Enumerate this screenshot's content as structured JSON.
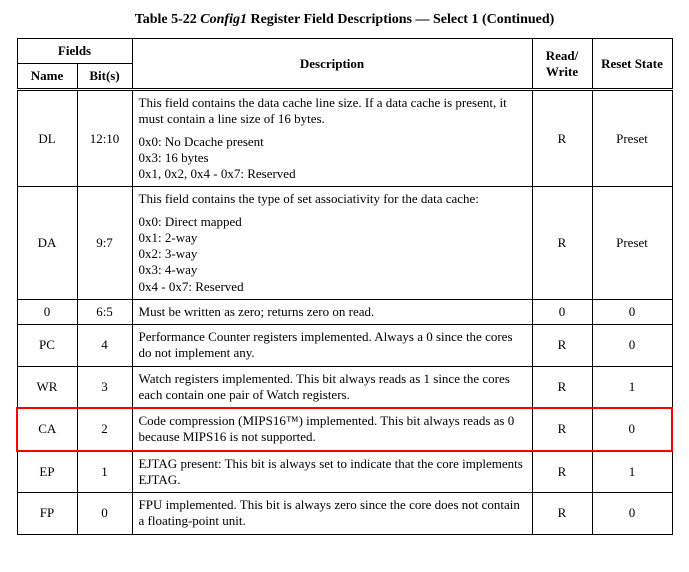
{
  "caption": {
    "prefix": "Table 5-22 ",
    "italic": "Config1",
    "suffix": " Register Field Descriptions — Select 1 (Continued)"
  },
  "headers": {
    "fields": "Fields",
    "name": "Name",
    "bits": "Bit(s)",
    "description": "Description",
    "rw": "Read/ Write",
    "reset": "Reset State"
  },
  "rows": [
    {
      "name": "DL",
      "bits": "12:10",
      "desc_blocks": [
        "This field contains the data cache line size. If a data cache is present, it must contain a line size of 16 bytes.",
        "0x0: No Dcache present\n0x3: 16 bytes\n0x1, 0x2, 0x4 - 0x7: Reserved"
      ],
      "rw": "R",
      "reset": "Preset",
      "highlight": false
    },
    {
      "name": "DA",
      "bits": "9:7",
      "desc_blocks": [
        "This field contains the type of set associativity for the data cache:",
        "0x0: Direct mapped\n0x1: 2-way\n0x2: 3-way\n0x3: 4-way\n0x4 - 0x7: Reserved"
      ],
      "rw": "R",
      "reset": "Preset",
      "highlight": false
    },
    {
      "name": "0",
      "bits": "6:5",
      "desc_blocks": [
        "Must be written as zero; returns zero on read."
      ],
      "rw": "0",
      "reset": "0",
      "highlight": false
    },
    {
      "name": "PC",
      "bits": "4",
      "desc_blocks": [
        "Performance Counter registers implemented. Always a 0 since the cores do not implement any."
      ],
      "rw": "R",
      "reset": "0",
      "highlight": false
    },
    {
      "name": "WR",
      "bits": "3",
      "desc_blocks": [
        "Watch registers implemented. This bit always reads as 1 since the cores each contain one pair of Watch registers."
      ],
      "rw": "R",
      "reset": "1",
      "highlight": false
    },
    {
      "name": "CA",
      "bits": "2",
      "desc_blocks": [
        "Code compression (MIPS16™) implemented. This bit always reads as 0 because MIPS16 is not supported."
      ],
      "rw": "R",
      "reset": "0",
      "highlight": true
    },
    {
      "name": "EP",
      "bits": "1",
      "desc_blocks": [
        "EJTAG present: This bit is always set to indicate that the core implements EJTAG."
      ],
      "rw": "R",
      "reset": "1",
      "highlight": false
    },
    {
      "name": "FP",
      "bits": "0",
      "desc_blocks": [
        "FPU implemented. This bit is always zero since the core does not contain a floating-point unit."
      ],
      "rw": "R",
      "reset": "0",
      "highlight": false
    }
  ],
  "colors": {
    "highlight_border": "#ff0000",
    "text": "#000000",
    "background": "#ffffff"
  }
}
